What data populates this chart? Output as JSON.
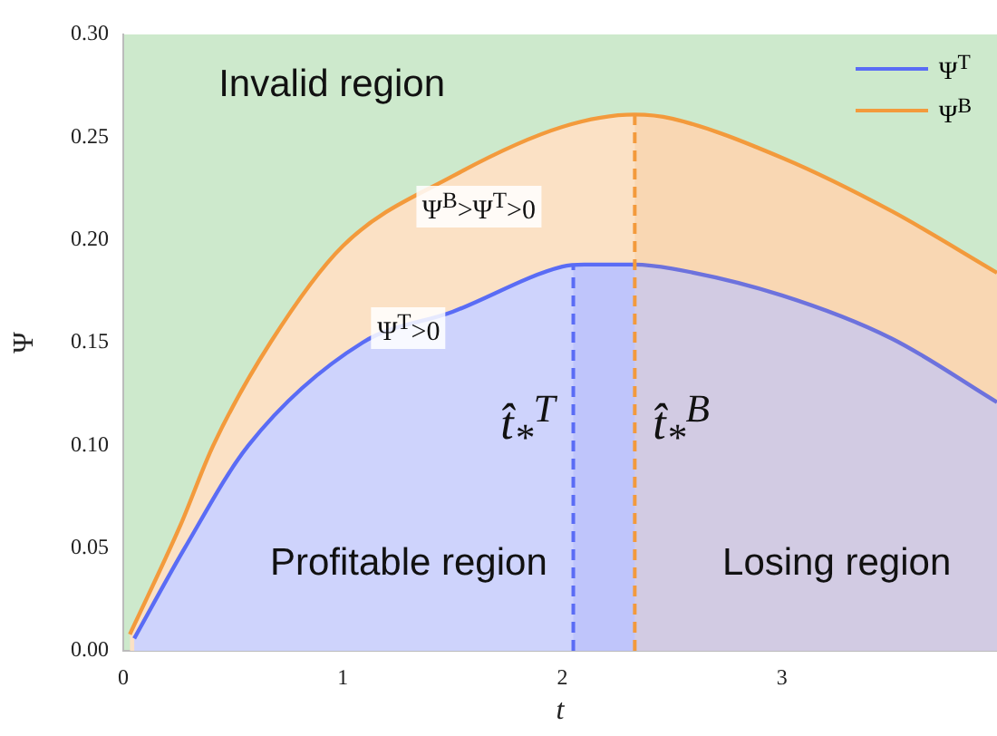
{
  "chart_data": {
    "type": "area",
    "xlabel": "t",
    "ylabel": "Ψ",
    "xlim": [
      0,
      3.98
    ],
    "xticks": [
      0,
      1,
      2,
      3
    ],
    "ylim": [
      0,
      0.3
    ],
    "yticks": [
      {
        "value": 0,
        "label": "0.00"
      },
      {
        "value": 0.05,
        "label": "0.05"
      },
      {
        "value": 0.1,
        "label": "0.10"
      },
      {
        "value": 0.15,
        "label": "0.15"
      },
      {
        "value": 0.2,
        "label": "0.20"
      },
      {
        "value": 0.25,
        "label": "0.25"
      },
      {
        "value": 0.3,
        "label": "0.30"
      }
    ],
    "series": [
      {
        "name": "Ψ$^{T}$",
        "color": "#5a6cf5",
        "x": [
          0.05,
          0.28,
          0.57,
          1.09,
          1.5,
          2,
          2.1,
          2.33,
          2.5,
          3,
          3.5,
          3.98
        ],
        "values": [
          0.006,
          0.05,
          0.1,
          0.15,
          0.165,
          0.187,
          0.188,
          0.188,
          0.186,
          0.173,
          0.152,
          0.121
        ]
      },
      {
        "name": "Ψ$^{B}$",
        "color": "#f39a3c",
        "x": [
          0.03,
          0.26,
          0.41,
          0.67,
          1,
          1.5,
          2,
          2.33,
          2.5,
          3,
          3.5,
          3.98
        ],
        "values": [
          0.008,
          0.061,
          0.1,
          0.15,
          0.197,
          0.231,
          0.255,
          0.261,
          0.259,
          0.24,
          0.214,
          0.184
        ]
      }
    ],
    "ref_lines": [
      {
        "axis": "x",
        "value": 2.05,
        "label": "t̂$_{*}$$^{T}$",
        "color": "#5a6cf5",
        "line_style": "dashed"
      },
      {
        "axis": "x",
        "value": 2.33,
        "label": "t̂$_{*}$$^{B}$",
        "color": "#f39a3c",
        "line_style": "dashed"
      }
    ],
    "bands": [
      {
        "axis": "x",
        "from": 2.05,
        "to": 2.33,
        "color": "#5a6cf5"
      },
      {
        "axis": "x",
        "from": 2.33,
        "to": 3.98,
        "color": "#f39a3c"
      }
    ],
    "annotations": [
      "Invalid region",
      "Ψ$^{B}$>Ψ$^{T}$>0",
      "Ψ$^{T}$>0",
      "Profitable region",
      "Losing region"
    ],
    "legend": "top right",
    "grid": false,
    "marker": "none",
    "line_style": "solid"
  }
}
